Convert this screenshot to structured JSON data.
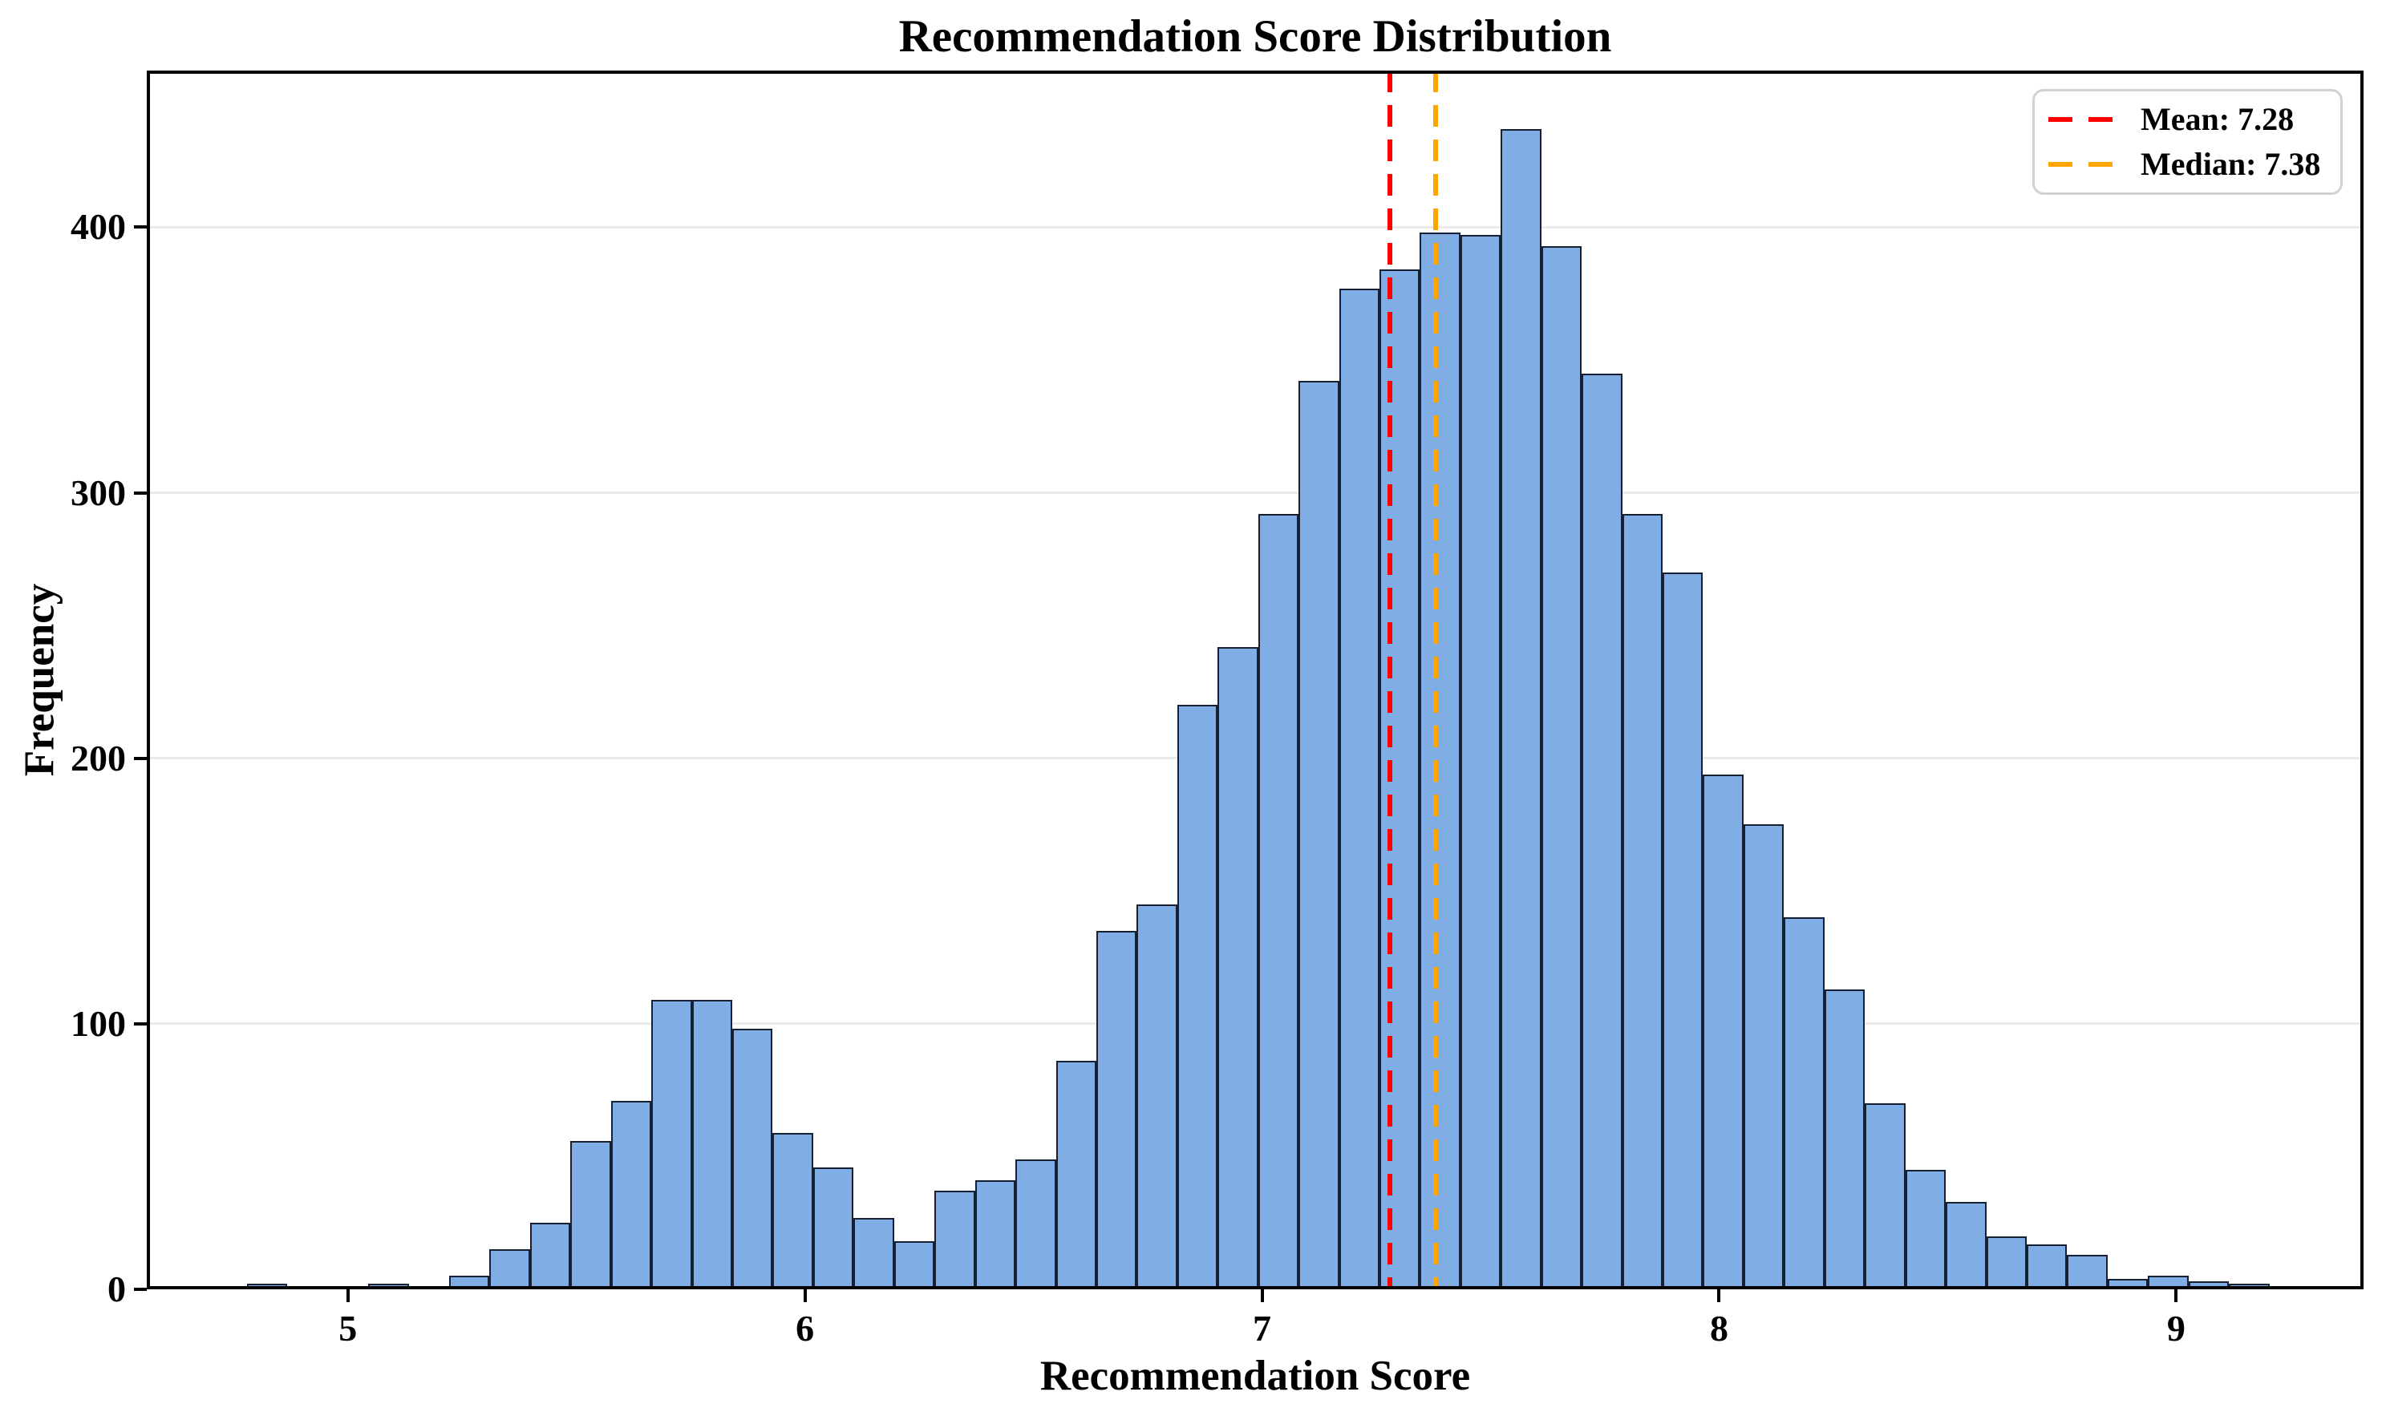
{
  "title": "Recommendation Score Distribution",
  "axes": {
    "xlabel": "Recommendation Score",
    "ylabel": "Frequency",
    "x_tick_labels": [
      "5",
      "6",
      "7",
      "8",
      "9"
    ],
    "y_tick_labels": [
      "0",
      "100",
      "200",
      "300",
      "400"
    ]
  },
  "legend": {
    "position": "upper right",
    "items": [
      {
        "label": "Mean: 7.28",
        "color": "#ff0000",
        "line_style": "dashed"
      },
      {
        "label": "Median: 7.38",
        "color": "#ffa500",
        "line_style": "dashed"
      }
    ]
  },
  "colors": {
    "background": "#ffffff",
    "bar_fill": "#7fade4",
    "bar_edge": "#172033",
    "grid": "#ebebeb",
    "spine": "#000000",
    "mean_line": "#ff0000",
    "median_line": "#ffa500",
    "legend_border": "#d2d2d2"
  },
  "chart_data": {
    "type": "bar",
    "subtype": "histogram",
    "title": "Recommendation Score Distribution",
    "xlabel": "Recommendation Score",
    "ylabel": "Frequency",
    "n_bins": 50,
    "bin_start": 4.779,
    "bin_width": 0.0885,
    "counts": [
      2,
      0,
      0,
      2,
      0,
      5,
      15,
      25,
      56,
      71,
      109,
      109,
      98,
      59,
      46,
      27,
      18,
      37,
      41,
      49,
      86,
      135,
      145,
      220,
      242,
      292,
      342,
      377,
      384,
      398,
      397,
      437,
      393,
      345,
      292,
      270,
      194,
      175,
      140,
      113,
      70,
      45,
      33,
      20,
      17,
      13,
      4,
      5,
      3,
      2
    ],
    "mean": 7.28,
    "median": 7.38,
    "mean_label": "Mean: 7.28",
    "median_label": "Median: 7.38",
    "x_ticks": [
      5,
      6,
      7,
      8,
      9
    ],
    "y_ticks": [
      0,
      100,
      200,
      300,
      400
    ],
    "xlim": [
      4.56,
      9.41
    ],
    "ylim": [
      0,
      459
    ],
    "grid": "horizontal",
    "legend_position": "upper right"
  }
}
